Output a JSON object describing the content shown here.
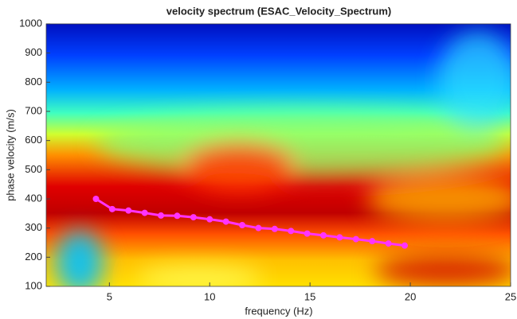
{
  "chart_data": {
    "type": "line",
    "title": "velocity spectrum (ESAC_Velocity_Spectrum)",
    "x_label": "frequency (Hz)",
    "y_label": "phase velocity (m/s)",
    "x": [
      4.33,
      5.14,
      5.95,
      6.76,
      7.57,
      8.38,
      9.19,
      10.0,
      10.81,
      11.62,
      12.43,
      13.24,
      14.05,
      14.86,
      15.67,
      16.48,
      17.29,
      18.1,
      18.91,
      19.72
    ],
    "series": [
      {
        "color": "#ff33ff",
        "values": [
          400,
          365,
          360,
          352,
          343,
          342,
          337,
          330,
          322,
          310,
          300,
          297,
          290,
          281,
          275,
          268,
          262,
          255,
          247,
          240
        ]
      }
    ],
    "xlim": [
      1.85,
      25
    ],
    "ylim": [
      100,
      1000
    ],
    "xticks": [
      5,
      10,
      15,
      20,
      25
    ],
    "yticks": [
      100,
      200,
      300,
      400,
      500,
      600,
      700,
      800,
      900,
      1000
    ]
  }
}
